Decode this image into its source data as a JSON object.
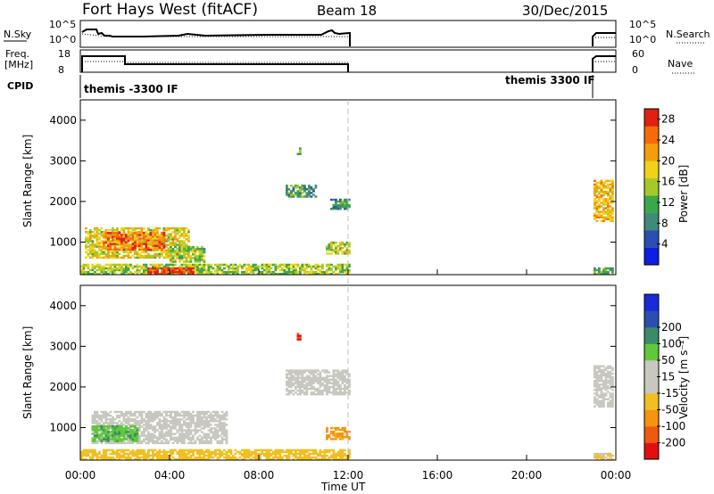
{
  "header": {
    "title": "Fort Hays West (fitACF)",
    "beam": "Beam 18",
    "date": "30/Dec/2015"
  },
  "summary": {
    "nsky_label": "N.Sky",
    "nsky_ticks": [
      "10^5",
      "10^0"
    ],
    "nsearch_label": "N.Search",
    "freq_label_1": "Freq.",
    "freq_label_2": "[MHz]",
    "freq_ticks": [
      "18",
      "8"
    ],
    "nave_label": "Nave",
    "nave_ticks": [
      "60",
      "0"
    ],
    "cpid_label": "CPID",
    "cpid_left": "themis -3300 IF",
    "cpid_right": "themis 3300 IF"
  },
  "colors": {
    "power_scale": [
      "#0a1fe0",
      "#2a4fb0",
      "#3f8a78",
      "#3aa84a",
      "#a8c82a",
      "#f0d21a",
      "#f59d0d",
      "#f56a0a",
      "#e02010"
    ],
    "velocity_scale": [
      "#e01010",
      "#f05a10",
      "#f5940f",
      "#f0c020",
      "#c8c8c0",
      "#c8c8c0",
      "#60c83a",
      "#3c8a6a",
      "#2a4fb0",
      "#1a2ad8"
    ],
    "grid": "#bbbbbb"
  },
  "chart_data": [
    {
      "type": "heatmap",
      "name": "power",
      "ylabel": "Slant Range [km]",
      "ylim": [
        200,
        4500
      ],
      "xlim": [
        0,
        24
      ],
      "yticks": [
        "1000",
        "2000",
        "3000",
        "4000"
      ],
      "colorbar_label": "Power [dB]",
      "colorbar_ticks": [
        "4",
        "8",
        "12",
        "16",
        "20",
        "24",
        "28"
      ],
      "colorbar_range": [
        0,
        30
      ],
      "regions": [
        {
          "t0": 0.2,
          "t1": 4.8,
          "r0": 600,
          "r1": 1350,
          "value": 18
        },
        {
          "t0": 1.0,
          "t1": 3.8,
          "r0": 800,
          "r1": 1250,
          "value": 24
        },
        {
          "t0": 4.0,
          "t1": 5.5,
          "r0": 500,
          "r1": 900,
          "value": 14
        },
        {
          "t0": 0.0,
          "t1": 12.0,
          "r0": 200,
          "r1": 450,
          "value": 15
        },
        {
          "t0": 3.0,
          "t1": 5.0,
          "r0": 200,
          "r1": 350,
          "value": 28
        },
        {
          "t0": 9.2,
          "t1": 10.5,
          "r0": 2100,
          "r1": 2400,
          "value": 10
        },
        {
          "t0": 11.2,
          "t1": 12.0,
          "r0": 1800,
          "r1": 2050,
          "value": 10
        },
        {
          "t0": 11.0,
          "t1": 12.0,
          "r0": 700,
          "r1": 1000,
          "value": 16
        },
        {
          "t0": 9.7,
          "t1": 9.8,
          "r0": 3150,
          "r1": 3300,
          "value": 13
        },
        {
          "t0": 23.0,
          "t1": 23.9,
          "r0": 1500,
          "r1": 2500,
          "value": 20
        },
        {
          "t0": 23.0,
          "t1": 23.9,
          "r0": 200,
          "r1": 350,
          "value": 12
        }
      ]
    },
    {
      "type": "heatmap",
      "name": "velocity",
      "xlabel": "Time UT",
      "ylabel": "Slant Range [km]",
      "ylim": [
        200,
        4500
      ],
      "xlim": [
        0,
        24
      ],
      "yticks": [
        "1000",
        "2000",
        "3000",
        "4000"
      ],
      "xticks": [
        "00:00",
        "04:00",
        "08:00",
        "12:00",
        "16:00",
        "20:00",
        "00:00"
      ],
      "colorbar_label": "Velocity [m s⁻¹]",
      "colorbar_ticks": [
        "-200",
        "-100",
        "-50",
        "-15",
        "15",
        "50",
        "100",
        "200"
      ],
      "regions": [
        {
          "t0": 0.5,
          "t1": 6.5,
          "r0": 600,
          "r1": 1400,
          "value": 0
        },
        {
          "t0": 0.5,
          "t1": 2.6,
          "r0": 650,
          "r1": 1050,
          "value": 40
        },
        {
          "t0": 0.0,
          "t1": 12.0,
          "r0": 200,
          "r1": 450,
          "value": -30
        },
        {
          "t0": 9.2,
          "t1": 12.0,
          "r0": 1800,
          "r1": 2400,
          "value": 0
        },
        {
          "t0": 11.0,
          "t1": 12.0,
          "r0": 700,
          "r1": 1000,
          "value": -60
        },
        {
          "t0": 9.7,
          "t1": 9.8,
          "r0": 3150,
          "r1": 3300,
          "value": -200
        },
        {
          "t0": 23.0,
          "t1": 23.9,
          "r0": 1500,
          "r1": 2500,
          "value": 0
        },
        {
          "t0": 23.0,
          "t1": 23.9,
          "r0": 200,
          "r1": 350,
          "value": -20
        }
      ]
    }
  ]
}
